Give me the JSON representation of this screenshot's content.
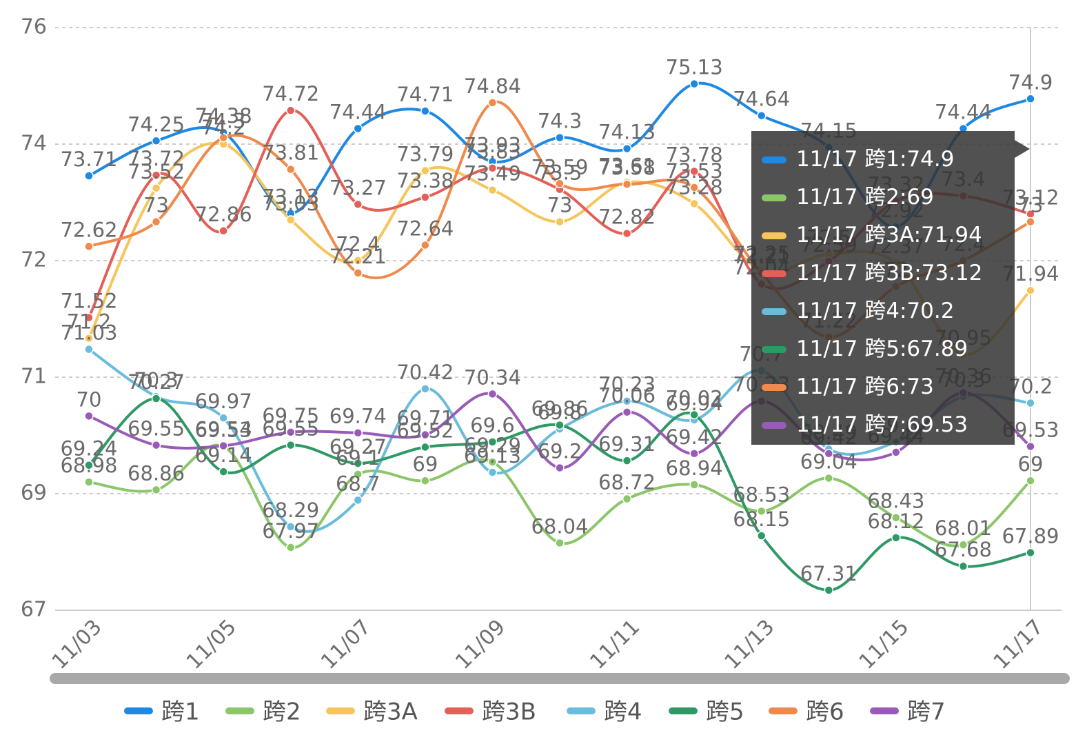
{
  "chart_data": {
    "type": "line",
    "smooth": true,
    "categories": [
      "11/03",
      null,
      "11/05",
      null,
      "11/07",
      null,
      "11/09",
      null,
      "11/11",
      null,
      "11/13",
      null,
      "11/15",
      null,
      "11/17"
    ],
    "ylim": [
      67,
      76
    ],
    "yticks": [
      67,
      {
        "value": 68.8,
        "label": "69"
      },
      {
        "value": 70.6,
        "label": "71"
      },
      {
        "value": 72.4,
        "label": "72"
      },
      {
        "value": 74.2,
        "label": "74"
      },
      76
    ],
    "grid": true,
    "legend": "bottom",
    "series": [
      {
        "name": "跨1",
        "color": "#1e88e5",
        "values": [
          73.71,
          74.25,
          74.38,
          73.13,
          74.44,
          74.71,
          73.93,
          74.3,
          74.13,
          75.13,
          74.64,
          74.15,
          72.92,
          74.44,
          74.9
        ]
      },
      {
        "name": "跨2",
        "color": "#8cc66a",
        "values": [
          68.98,
          68.86,
          69.53,
          67.97,
          69.1,
          69,
          69.29,
          68.04,
          68.72,
          68.94,
          68.53,
          69.04,
          68.43,
          68.01,
          69
        ]
      },
      {
        "name": "跨3A",
        "color": "#f6c55b",
        "values": [
          71.2,
          73.52,
          74.2,
          73.03,
          72.4,
          73.79,
          73.49,
          73,
          73.61,
          73.28,
          72.25,
          72.5,
          72.37,
          70.95,
          71.94
        ]
      },
      {
        "name": "跨3B",
        "color": "#e45f58",
        "values": [
          71.52,
          73.72,
          72.86,
          74.72,
          73.27,
          73.38,
          73.83,
          73.5,
          72.82,
          73.78,
          72.04,
          72.39,
          73.32,
          73.4,
          73.12
        ]
      },
      {
        "name": "跨4",
        "color": "#6bbcdc",
        "values": [
          71.03,
          70.3,
          69.97,
          68.29,
          68.7,
          70.42,
          69.13,
          69.8,
          70.23,
          69.94,
          70.7,
          69.49,
          69.6,
          70.3,
          70.2
        ]
      },
      {
        "name": "跨5",
        "color": "#2f9966",
        "values": [
          69.24,
          70.27,
          69.14,
          69.55,
          69.27,
          69.52,
          69.6,
          69.86,
          69.31,
          70.02,
          68.15,
          67.31,
          68.12,
          67.68,
          67.89
        ]
      },
      {
        "name": "跨6",
        "color": "#ef8a4c",
        "values": [
          72.62,
          73,
          74.3,
          73.81,
          72.21,
          72.64,
          74.84,
          73.59,
          73.58,
          73.53,
          72.21,
          71.22,
          72,
          72.4,
          73
        ]
      },
      {
        "name": "跨7",
        "color": "#995bb7",
        "values": [
          70,
          69.55,
          69.54,
          69.75,
          69.74,
          69.71,
          70.34,
          69.2,
          70.06,
          69.42,
          70.23,
          69.42,
          69.44,
          70.36,
          69.53
        ]
      }
    ]
  }
}
